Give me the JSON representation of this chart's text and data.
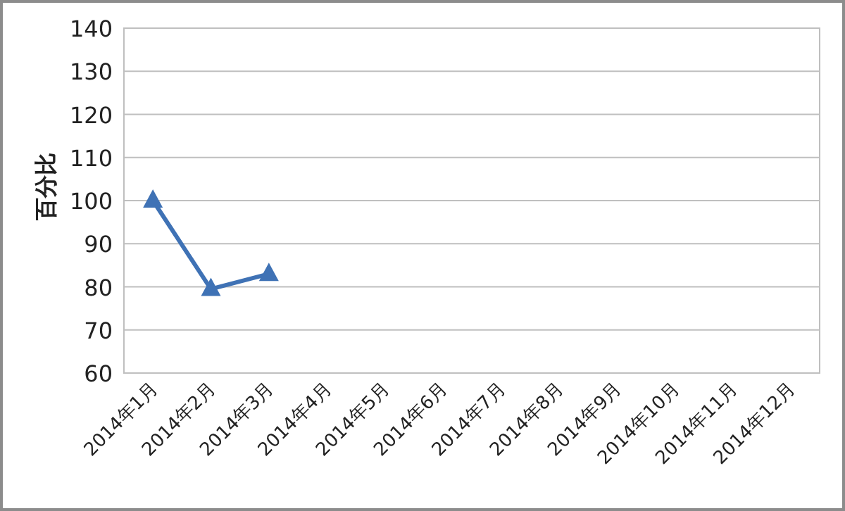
{
  "chart_data": {
    "type": "line",
    "ylabel": "百分比",
    "categories": [
      "2014年1月",
      "2014年2月",
      "2014年3月",
      "2014年4月",
      "2014年5月",
      "2014年6月",
      "2014年7月",
      "2014年8月",
      "2014年9月",
      "2014年10月",
      "2014年11月",
      "2014年12月"
    ],
    "series": [
      {
        "color": "#3f72b5",
        "values": [
          100,
          79.5,
          83,
          null,
          null,
          null,
          null,
          null,
          null,
          null,
          null,
          null
        ]
      }
    ],
    "ylim": [
      60,
      140
    ],
    "yticks": [
      60,
      70,
      80,
      90,
      100,
      110,
      120,
      130,
      140
    ],
    "grid": "y",
    "marker": "triangle"
  }
}
